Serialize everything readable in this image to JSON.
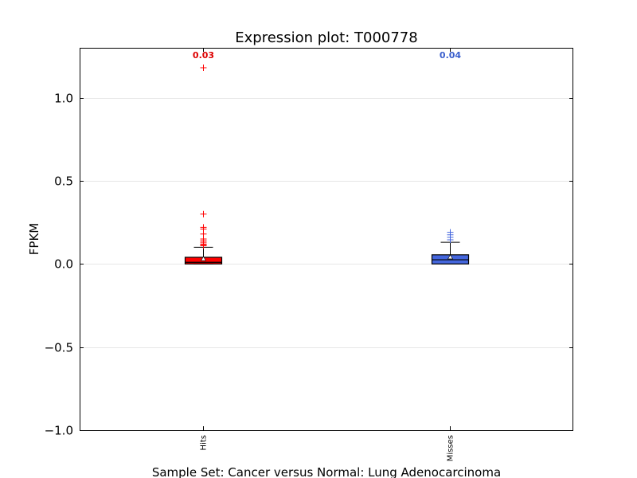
{
  "chart_data": {
    "type": "box",
    "title": "Expression plot: T000778",
    "xlabel": "Sample Set: Cancer versus Normal: Lung Adenocarcinoma",
    "ylabel": "FPKM",
    "ylim": [
      -1.0,
      1.3
    ],
    "yticks": [
      1.0,
      0.5,
      0.0,
      -0.5,
      -1.0
    ],
    "ytick_labels": [
      "1.0",
      "0.5",
      "0.0",
      "−0.5",
      "−1.0"
    ],
    "grid": true,
    "categories": [
      "Hits",
      "Misses"
    ],
    "series": [
      {
        "name": "Hits",
        "color": "#ff0000",
        "label_color": "#dd0000",
        "annotation": "0.03",
        "stats": {
          "whislo": 0.0,
          "q1": 0.0,
          "med": 0.01,
          "q3": 0.04,
          "whishi": 0.1,
          "mean": 0.03
        },
        "fliers": [
          1.18,
          0.3,
          0.22,
          0.21,
          0.18,
          0.15,
          0.14,
          0.13,
          0.12,
          0.115,
          0.11
        ]
      },
      {
        "name": "Misses",
        "color": "#4466dd",
        "label_color": "#3a5fcd",
        "annotation": "0.04",
        "stats": {
          "whislo": 0.0,
          "q1": 0.0,
          "med": 0.025,
          "q3": 0.055,
          "whishi": 0.13,
          "mean": 0.04
        },
        "fliers": [
          0.19,
          0.175,
          0.16,
          0.145
        ]
      }
    ]
  }
}
